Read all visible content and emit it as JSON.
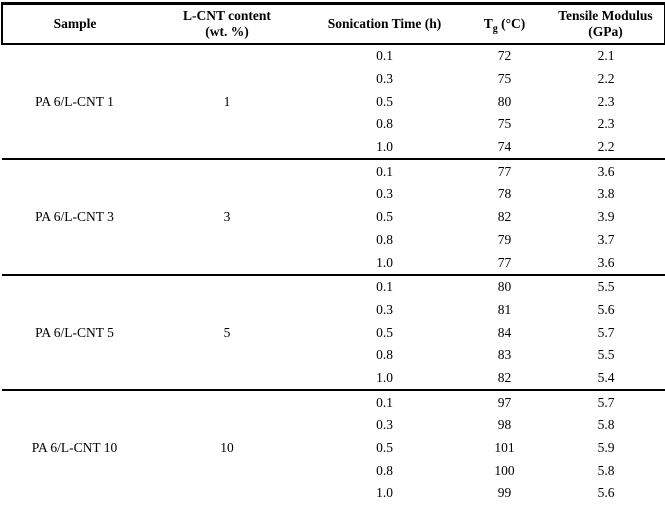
{
  "header": {
    "sample": "Sample",
    "content_line1": "L-CNT content",
    "content_line2": "(wt. %)",
    "sonication": "Sonication Time (h)",
    "tg_prefix": "T",
    "tg_sub": "g",
    "tg_unit": " (°C)",
    "modulus_line1": "Tensile Modulus",
    "modulus_line2": "(GPa)"
  },
  "colors": {
    "text": "#000000",
    "rule": "#000000",
    "background": "#ffffff"
  },
  "groups": [
    {
      "sample": "PA 6/L-CNT 1",
      "content": "1",
      "rows": [
        {
          "time": "0.1",
          "tg": "72",
          "modulus": "2.1"
        },
        {
          "time": "0.3",
          "tg": "75",
          "modulus": "2.2"
        },
        {
          "time": "0.5",
          "tg": "80",
          "modulus": "2.3"
        },
        {
          "time": "0.8",
          "tg": "75",
          "modulus": "2.3"
        },
        {
          "time": "1.0",
          "tg": "74",
          "modulus": "2.2"
        }
      ]
    },
    {
      "sample": "PA 6/L-CNT 3",
      "content": "3",
      "rows": [
        {
          "time": "0.1",
          "tg": "77",
          "modulus": "3.6"
        },
        {
          "time": "0.3",
          "tg": "78",
          "modulus": "3.8"
        },
        {
          "time": "0.5",
          "tg": "82",
          "modulus": "3.9"
        },
        {
          "time": "0.8",
          "tg": "79",
          "modulus": "3.7"
        },
        {
          "time": "1.0",
          "tg": "77",
          "modulus": "3.6"
        }
      ]
    },
    {
      "sample": "PA 6/L-CNT 5",
      "content": "5",
      "rows": [
        {
          "time": "0.1",
          "tg": "80",
          "modulus": "5.5"
        },
        {
          "time": "0.3",
          "tg": "81",
          "modulus": "5.6"
        },
        {
          "time": "0.5",
          "tg": "84",
          "modulus": "5.7"
        },
        {
          "time": "0.8",
          "tg": "83",
          "modulus": "5.5"
        },
        {
          "time": "1.0",
          "tg": "82",
          "modulus": "5.4"
        }
      ]
    },
    {
      "sample": "PA 6/L-CNT 10",
      "content": "10",
      "rows": [
        {
          "time": "0.1",
          "tg": "97",
          "modulus": "5.7"
        },
        {
          "time": "0.3",
          "tg": "98",
          "modulus": "5.8"
        },
        {
          "time": "0.5",
          "tg": "101",
          "modulus": "5.9"
        },
        {
          "time": "0.8",
          "tg": "100",
          "modulus": "5.8"
        },
        {
          "time": "1.0",
          "tg": "99",
          "modulus": "5.6"
        }
      ]
    }
  ]
}
